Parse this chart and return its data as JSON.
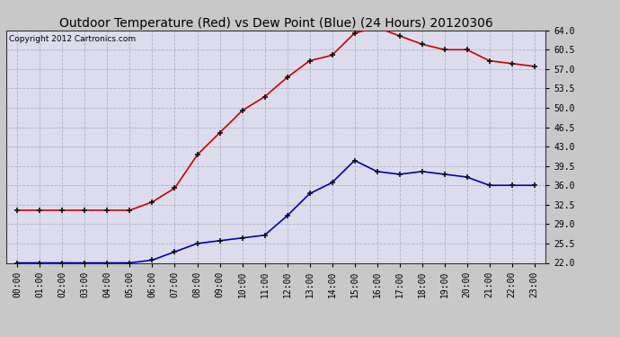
{
  "title": "Outdoor Temperature (Red) vs Dew Point (Blue) (24 Hours) 20120306",
  "copyright_text": "Copyright 2012 Cartronics.com",
  "hours": [
    "00:00",
    "01:00",
    "02:00",
    "03:00",
    "04:00",
    "05:00",
    "06:00",
    "07:00",
    "08:00",
    "09:00",
    "10:00",
    "11:00",
    "12:00",
    "13:00",
    "14:00",
    "15:00",
    "16:00",
    "17:00",
    "18:00",
    "19:00",
    "20:00",
    "21:00",
    "22:00",
    "23:00"
  ],
  "temp_red": [
    31.5,
    31.5,
    31.5,
    31.5,
    31.5,
    31.5,
    33.0,
    35.5,
    41.5,
    45.5,
    49.5,
    52.0,
    55.5,
    58.5,
    59.5,
    63.5,
    64.5,
    63.0,
    61.5,
    60.5,
    60.5,
    58.5,
    58.0,
    57.5
  ],
  "dew_blue": [
    22.0,
    22.0,
    22.0,
    22.0,
    22.0,
    22.0,
    22.5,
    24.0,
    25.5,
    26.0,
    26.5,
    27.0,
    30.5,
    34.5,
    36.5,
    40.5,
    38.5,
    38.0,
    38.5,
    38.0,
    37.5,
    36.0,
    36.0,
    36.0
  ],
  "ylim_min": 22.0,
  "ylim_max": 64.0,
  "yticks": [
    22.0,
    25.5,
    29.0,
    32.5,
    36.0,
    39.5,
    43.0,
    46.5,
    50.0,
    53.5,
    57.0,
    60.5,
    64.0
  ],
  "fig_bg_color": "#c8c8c8",
  "plot_bg_color": "#dcdcec",
  "red_color": "#cc0000",
  "blue_color": "#0000bb",
  "grid_color": "#b0b0c8",
  "title_fontsize": 10,
  "copyright_fontsize": 6.5,
  "tick_fontsize": 7,
  "marker_color": "#111111"
}
